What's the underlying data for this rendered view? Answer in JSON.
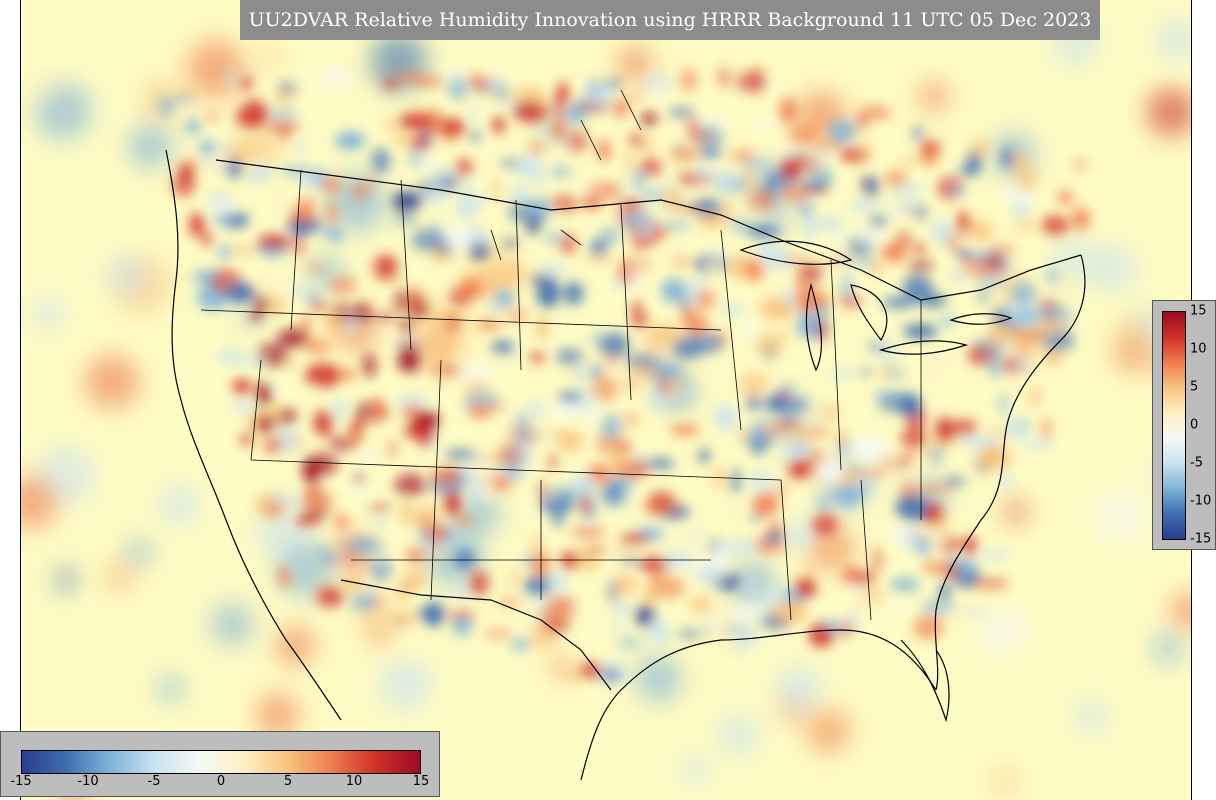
{
  "title": "UU2DVAR Relative Humidity Innovation using HRRR Background 11 UTC 05 Dec 2023",
  "colorbar": {
    "min": -15,
    "max": 15,
    "right_ticks": [
      "15",
      "10",
      "5",
      "0",
      "-5",
      "-10",
      "-15"
    ],
    "bottom_ticks": [
      "-15",
      "-10",
      "-5",
      "0",
      "5",
      "10",
      "15"
    ],
    "colors": [
      "#2a3c8f",
      "#3e6fb0",
      "#7fb3d8",
      "#c9e3f0",
      "#f4f9f6",
      "#fdf0c4",
      "#f8c47e",
      "#ee7d4e",
      "#cf3028",
      "#9c0a24"
    ]
  },
  "map": {
    "background_color": "#fefbc4"
  }
}
